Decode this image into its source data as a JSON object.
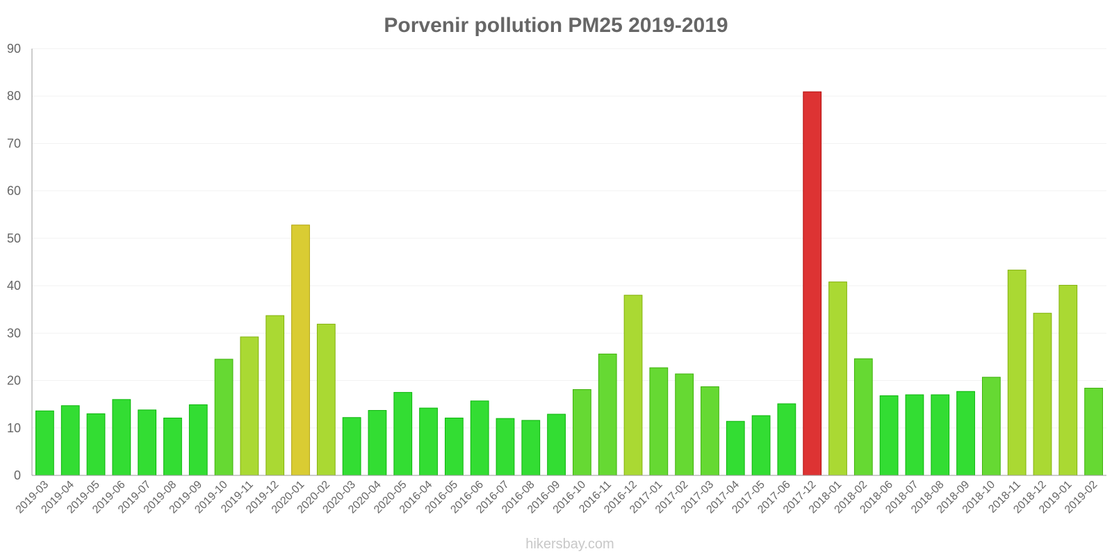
{
  "chart_data": {
    "type": "bar",
    "title": "Porvenir pollution PM25 2019-2019",
    "xlabel": "",
    "ylabel": "",
    "ylim": [
      0,
      90
    ],
    "yticks": [
      "0",
      "10",
      "20",
      "30",
      "40",
      "50",
      "60",
      "70",
      "80",
      "90"
    ],
    "grid": true,
    "categories": [
      "2019-03",
      "2019-04",
      "2019-05",
      "2019-06",
      "2019-07",
      "2019-08",
      "2019-09",
      "2019-10",
      "2019-11",
      "2019-12",
      "2020-01",
      "2020-02",
      "2020-03",
      "2020-04",
      "2020-05",
      "2016-04",
      "2016-05",
      "2016-06",
      "2016-07",
      "2016-08",
      "2016-09",
      "2016-10",
      "2016-11",
      "2016-12",
      "2017-01",
      "2017-02",
      "2017-03",
      "2017-04",
      "2017-05",
      "2017-06",
      "2017-12",
      "2018-01",
      "2018-02",
      "2018-06",
      "2018-07",
      "2018-08",
      "2018-09",
      "2018-10",
      "2018-11",
      "2018-12",
      "2019-01",
      "2019-02"
    ],
    "values": [
      13.6,
      14.7,
      13.0,
      16.0,
      13.8,
      12.1,
      14.9,
      24.5,
      29.2,
      33.7,
      52.8,
      31.9,
      12.2,
      13.7,
      17.5,
      14.2,
      12.1,
      15.7,
      12.0,
      11.6,
      12.9,
      18.1,
      25.6,
      38.0,
      22.7,
      21.4,
      18.7,
      11.4,
      12.6,
      15.1,
      80.9,
      40.8,
      24.6,
      16.8,
      17.0,
      17.0,
      17.7,
      20.7,
      43.3,
      34.2,
      40.1,
      18.4
    ],
    "colors": {
      "green": "#33dd33",
      "lime": "#66d933",
      "yellowgreen": "#aad933",
      "yellow": "#d9cc33",
      "red": "#dd3333"
    }
  },
  "watermark": "hikersbay.com"
}
